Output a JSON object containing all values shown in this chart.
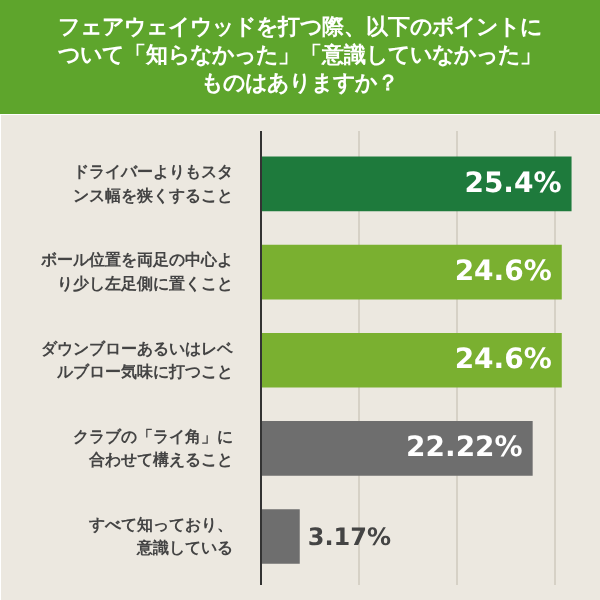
{
  "chart_data": {
    "type": "bar",
    "orientation": "horizontal",
    "title": "フェアウェイウッドを打つ際、以下のポイントについて「知らなかった」「意識していなかった」ものはありますか？",
    "categories": [
      "ドライバーよりもスタンス幅を狭くすること",
      "ボール位置を両足の中心より少し左足側に置くこと",
      "ダウンブローあるいはレベルブロー気味に打つこと",
      "クラブの「ライ角」に合わせて構えること",
      "すべて知っており、意識している"
    ],
    "values": [
      25.4,
      24.6,
      24.6,
      22.22,
      3.17
    ],
    "colors": [
      "#1e7a3c",
      "#7ab030",
      "#7ab030",
      "#6e6e6e",
      "#6e6e6e"
    ],
    "value_labels": [
      "25.4%",
      "24.6%",
      "24.6%",
      "22.22%",
      "3.17%"
    ],
    "xlim": [
      0,
      26.5
    ],
    "xticks": [
      {
        "value": 8,
        "label": null
      },
      {
        "value": 16,
        "label": null
      },
      {
        "value": 24,
        "label": null
      }
    ],
    "tick_labels": "y",
    "grid": "x"
  }
}
